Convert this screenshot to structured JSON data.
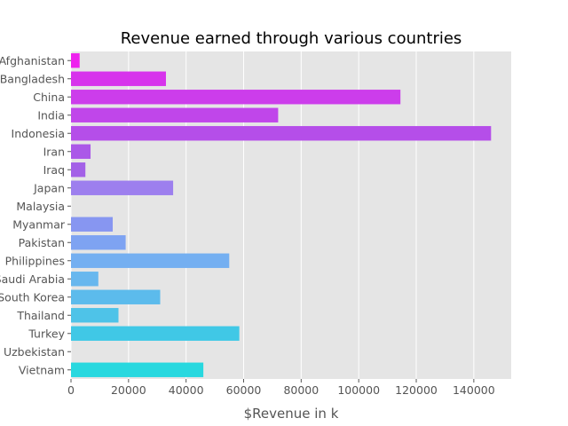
{
  "chart_data": {
    "type": "bar",
    "orientation": "horizontal",
    "title": "Revenue earned through various countries",
    "xlabel": "$Revenue in k",
    "ylabel": "",
    "xlim": [
      0,
      153000
    ],
    "x_ticks": [
      0,
      20000,
      40000,
      60000,
      80000,
      100000,
      120000,
      140000
    ],
    "grid": true,
    "categories": [
      "Afghanistan",
      "Bangladesh",
      "China",
      "India",
      "Indonesia",
      "Iran",
      "Iraq",
      "Japan",
      "Malaysia",
      "Myanmar",
      "Pakistan",
      "Philippines",
      "Saudi Arabia",
      "South Korea",
      "Thailand",
      "Turkey",
      "Uzbekistan",
      "Vietnam"
    ],
    "values": [
      3000,
      33000,
      114500,
      72000,
      146000,
      6800,
      5000,
      35500,
      0,
      14500,
      19000,
      55000,
      9500,
      31000,
      16500,
      58500,
      0,
      46000
    ],
    "colors": [
      "#ee22ee",
      "#d733ec",
      "#cc3deb",
      "#c046ea",
      "#b54ee9",
      "#ab58e8",
      "#a361e7",
      "#9d7fee",
      "#8f8ff0",
      "#8796f1",
      "#7ea3f2",
      "#74aff1",
      "#68b7ee",
      "#5cbbec",
      "#4ec3e8",
      "#40c8e6",
      "#34d0e2",
      "#28d8df"
    ]
  }
}
